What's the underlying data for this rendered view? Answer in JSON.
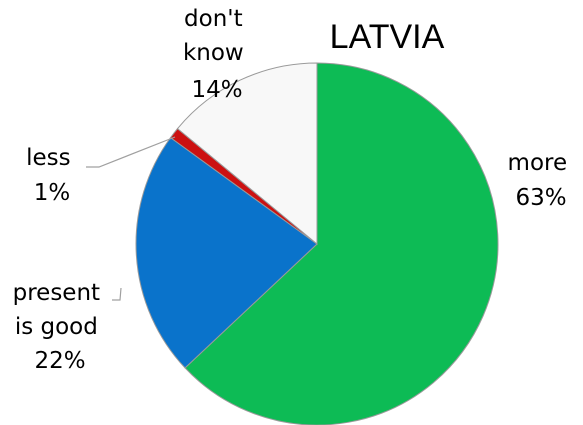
{
  "chart_data": {
    "type": "pie",
    "title": "LATVIA",
    "slices": [
      {
        "label_lines": [
          "more",
          "63%"
        ],
        "category": "more",
        "value": 63,
        "color": "#0dbb55"
      },
      {
        "label_lines": [
          "present",
          "is good",
          "22%"
        ],
        "category": "present is good",
        "value": 22,
        "color": "#0a73cb"
      },
      {
        "label_lines": [
          "less",
          "1%"
        ],
        "category": "less",
        "value": 1,
        "color": "#cc1111"
      },
      {
        "label_lines": [
          "don't",
          "know",
          "14%"
        ],
        "category": "don't know",
        "value": 14,
        "color": "#f8f8f8"
      }
    ],
    "start_direction": "12 o'clock",
    "direction": "clockwise",
    "legend": "none"
  }
}
